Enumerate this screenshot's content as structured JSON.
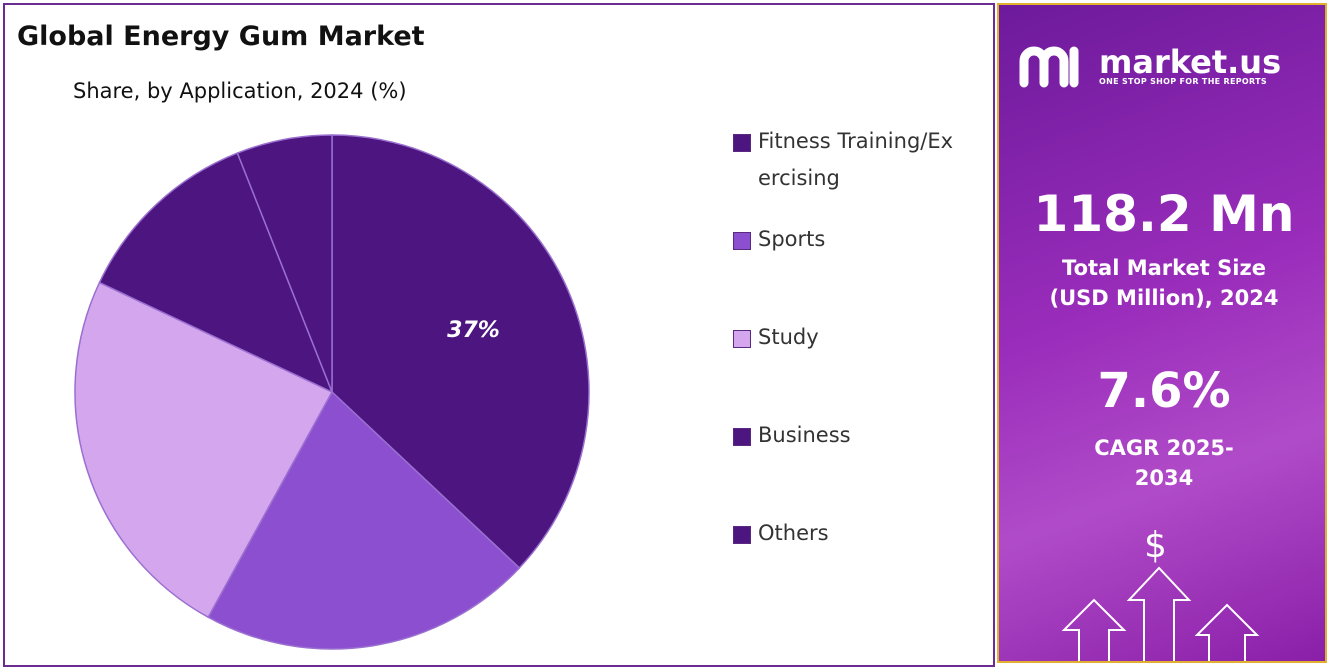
{
  "chart_data": {
    "type": "pie",
    "title": "Global Energy Gum Market",
    "subtitle": "Share, by Application, 2024 (%)",
    "categories": [
      "Fitness Training/Exercising",
      "Sports",
      "Study",
      "Business",
      "Others"
    ],
    "values": [
      37,
      21,
      24,
      12,
      6
    ],
    "value_labels": [
      "37%",
      null,
      null,
      null,
      null
    ],
    "colors": [
      "#4c1580",
      "#8b4fd0",
      "#d3a6ee",
      "#4c1580",
      "#4c1580"
    ]
  },
  "panel": {
    "logo": "market.us",
    "tagline": "ONE STOP SHOP FOR THE REPORTS",
    "market_size": "118.2 Mn",
    "market_size_label": "Total Market Size (USD Million), 2024",
    "cagr": "7.6%",
    "cagr_label": "CAGR 2025-2034",
    "icon": "$"
  }
}
